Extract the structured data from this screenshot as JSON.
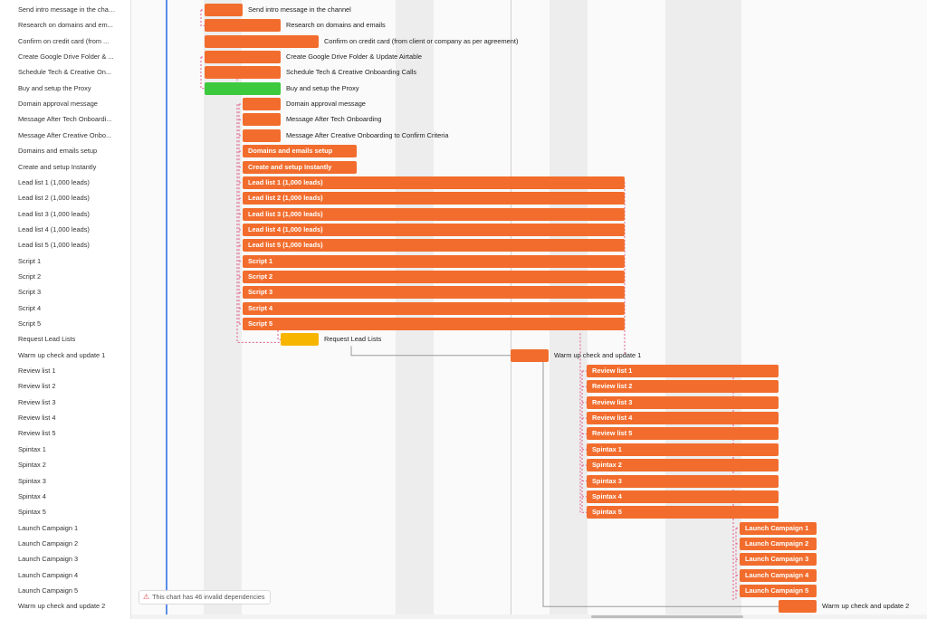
{
  "colors": {
    "bar_orange": "#f26d2d",
    "bar_green": "#3dc93d",
    "bar_yellow": "#f7b500",
    "dependency_line": "#e05a8c",
    "today_line": "#5b8de8",
    "band": "#ededed"
  },
  "warning": {
    "icon": "warning-triangle-icon",
    "text": "This chart has 46 invalid dependencies"
  },
  "tasks": [
    {
      "name": "Send intro message in the channel",
      "list_label": "Send intro message in the chann...",
      "bar_label": "Send intro message in the channel",
      "label_inside": false,
      "color": "orange"
    },
    {
      "name": "Research on domains and emails",
      "list_label": "Research on domains and em...",
      "bar_label": "Research on domains and emails",
      "label_inside": false,
      "color": "orange"
    },
    {
      "name": "Confirm on credit card (from client or company as per agreement)",
      "list_label": "Confirm on credit card (from ...",
      "bar_label": "Confirm on credit card (from client or company as per agreement)",
      "label_inside": false,
      "color": "orange"
    },
    {
      "name": "Create Google Drive Folder & Update Airtable",
      "list_label": "Create Google Drive Folder & ...",
      "bar_label": "Create Google Drive Folder & Update Airtable",
      "label_inside": false,
      "color": "orange"
    },
    {
      "name": "Schedule Tech & Creative Onboarding Calls",
      "list_label": "Schedule Tech & Creative On...",
      "bar_label": "Schedule Tech & Creative Onboarding Calls",
      "label_inside": false,
      "color": "orange"
    },
    {
      "name": "Buy and setup the Proxy",
      "list_label": "Buy and setup the Proxy",
      "bar_label": "Buy and setup the Proxy",
      "label_inside": false,
      "color": "green"
    },
    {
      "name": "Domain approval message",
      "list_label": "Domain approval message",
      "bar_label": "Domain approval message",
      "label_inside": false,
      "color": "orange"
    },
    {
      "name": "Message After Tech Onboarding",
      "list_label": "Message After Tech Onboardi...",
      "bar_label": "Message After Tech Onboarding",
      "label_inside": false,
      "color": "orange"
    },
    {
      "name": "Message After Creative Onboarding to Confirm Criteria",
      "list_label": "Message After Creative Onbo...",
      "bar_label": "Message After Creative Onboarding to Confirm Criteria",
      "label_inside": false,
      "color": "orange"
    },
    {
      "name": "Domains and emails setup",
      "list_label": "Domains and emails setup",
      "bar_label": "Domains and emails setup",
      "label_inside": true,
      "color": "orange"
    },
    {
      "name": "Create and setup Instantly",
      "list_label": "Create and setup Instantly",
      "bar_label": "Create and setup Instantly",
      "label_inside": true,
      "color": "orange"
    },
    {
      "name": "Lead list 1 (1,000 leads)",
      "list_label": "Lead list 1 (1,000 leads)",
      "bar_label": "Lead list 1 (1,000 leads)",
      "label_inside": true,
      "color": "orange"
    },
    {
      "name": "Lead list 2 (1,000 leads)",
      "list_label": "Lead list 2 (1,000 leads)",
      "bar_label": "Lead list 2 (1,000 leads)",
      "label_inside": true,
      "color": "orange"
    },
    {
      "name": "Lead list 3 (1,000 leads)",
      "list_label": "Lead list 3 (1,000 leads)",
      "bar_label": "Lead list 3 (1,000 leads)",
      "label_inside": true,
      "color": "orange"
    },
    {
      "name": "Lead list 4 (1,000 leads)",
      "list_label": "Lead list 4 (1,000 leads)",
      "bar_label": "Lead list 4 (1,000 leads)",
      "label_inside": true,
      "color": "orange"
    },
    {
      "name": "Lead list 5 (1,000 leads)",
      "list_label": "Lead list 5 (1,000 leads)",
      "bar_label": "Lead list 5 (1,000 leads)",
      "label_inside": true,
      "color": "orange"
    },
    {
      "name": "Script 1",
      "list_label": "Script 1",
      "bar_label": "Script 1",
      "label_inside": true,
      "color": "orange"
    },
    {
      "name": "Script 2",
      "list_label": "Script 2",
      "bar_label": "Script 2",
      "label_inside": true,
      "color": "orange"
    },
    {
      "name": "Script 3",
      "list_label": "Script 3",
      "bar_label": "Script 3",
      "label_inside": true,
      "color": "orange"
    },
    {
      "name": "Script 4",
      "list_label": "Script 4",
      "bar_label": "Script 4",
      "label_inside": true,
      "color": "orange"
    },
    {
      "name": "Script 5",
      "list_label": "Script 5",
      "bar_label": "Script 5",
      "label_inside": true,
      "color": "orange"
    },
    {
      "name": "Request Lead Lists",
      "list_label": "Request Lead Lists",
      "bar_label": "Request Lead Lists",
      "label_inside": false,
      "color": "yellow"
    },
    {
      "name": "Warm up check and update 1",
      "list_label": "Warm up check and update 1",
      "bar_label": "Warm up check and update 1",
      "label_inside": false,
      "color": "orange"
    },
    {
      "name": "Review list 1",
      "list_label": "Review list 1",
      "bar_label": "Review list 1",
      "label_inside": true,
      "color": "orange"
    },
    {
      "name": "Review list 2",
      "list_label": "Review list 2",
      "bar_label": "Review list 2",
      "label_inside": true,
      "color": "orange"
    },
    {
      "name": "Review list 3",
      "list_label": "Review list 3",
      "bar_label": "Review list 3",
      "label_inside": true,
      "color": "orange"
    },
    {
      "name": "Review list 4",
      "list_label": "Review list 4",
      "bar_label": "Review list 4",
      "label_inside": true,
      "color": "orange"
    },
    {
      "name": "Review list 5",
      "list_label": "Review list 5",
      "bar_label": "Review list 5",
      "label_inside": true,
      "color": "orange"
    },
    {
      "name": "Spintax 1",
      "list_label": "Spintax 1",
      "bar_label": "Spintax 1",
      "label_inside": true,
      "color": "orange"
    },
    {
      "name": "Spintax 2",
      "list_label": "Spintax 2",
      "bar_label": "Spintax 2",
      "label_inside": true,
      "color": "orange"
    },
    {
      "name": "Spintax 3",
      "list_label": "Spintax 3",
      "bar_label": "Spintax 3",
      "label_inside": true,
      "color": "orange"
    },
    {
      "name": "Spintax 4",
      "list_label": "Spintax 4",
      "bar_label": "Spintax 4",
      "label_inside": true,
      "color": "orange"
    },
    {
      "name": "Spintax 5",
      "list_label": "Spintax 5",
      "bar_label": "Spintax 5",
      "label_inside": true,
      "color": "orange"
    },
    {
      "name": "Launch Campaign 1",
      "list_label": "Launch Campaign 1",
      "bar_label": "Launch Campaign 1",
      "label_inside": true,
      "color": "orange"
    },
    {
      "name": "Launch Campaign 2",
      "list_label": "Launch Campaign 2",
      "bar_label": "Launch Campaign 2",
      "label_inside": true,
      "color": "orange"
    },
    {
      "name": "Launch Campaign 3",
      "list_label": "Launch Campaign 3",
      "bar_label": "Launch Campaign 3",
      "label_inside": true,
      "color": "orange"
    },
    {
      "name": "Launch Campaign 4",
      "list_label": "Launch Campaign 4",
      "bar_label": "Launch Campaign 4",
      "label_inside": true,
      "color": "orange"
    },
    {
      "name": "Launch Campaign 5",
      "list_label": "Launch Campaign 5",
      "bar_label": "Launch Campaign 5",
      "label_inside": true,
      "color": "orange"
    },
    {
      "name": "Warm up check and update 2",
      "list_label": "Warm up check and update 2",
      "bar_label": "Warm up check and update 2",
      "label_inside": false,
      "color": "orange"
    }
  ]
}
